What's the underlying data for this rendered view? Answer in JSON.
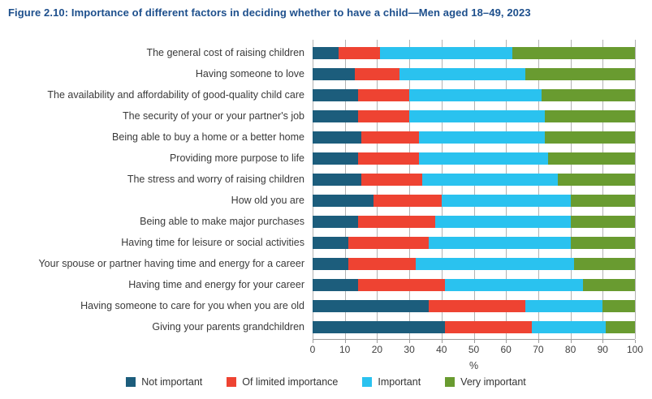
{
  "chart_data": {
    "type": "bar",
    "orientation": "horizontal",
    "stacked": true,
    "title": "Figure 2.10: Importance of different factors in deciding whether to have a child—Men aged 18–49, 2023",
    "xlabel": "%",
    "xlim": [
      0,
      100
    ],
    "x_ticks": [
      0,
      10,
      20,
      30,
      40,
      50,
      60,
      70,
      80,
      90,
      100
    ],
    "grid": "vertical",
    "legend_position": "bottom",
    "categories": [
      "The general cost of raising children",
      "Having someone to love",
      "The availability and affordability of good-quality child care",
      "The security of your or your partner's job",
      "Being able to buy a home or a better home",
      "Providing more purpose to life",
      "The stress and worry of raising children",
      "How old you are",
      "Being able to make major purchases",
      "Having time for leisure or social activities",
      "Your spouse or partner having time and energy for a career",
      "Having time and energy for your career",
      "Having someone to care for you when you are old",
      "Giving your parents grandchildren"
    ],
    "series": [
      {
        "name": "Not important",
        "color": "#1c5d7c",
        "values": [
          8,
          13,
          14,
          14,
          15,
          14,
          15,
          19,
          14,
          11,
          11,
          14,
          36,
          41
        ]
      },
      {
        "name": "Of limited importance",
        "color": "#ee4332",
        "values": [
          13,
          14,
          16,
          16,
          18,
          19,
          19,
          21,
          24,
          25,
          21,
          27,
          30,
          27
        ]
      },
      {
        "name": "Important",
        "color": "#2ac2ef",
        "values": [
          41,
          39,
          41,
          42,
          39,
          40,
          42,
          40,
          42,
          44,
          49,
          43,
          24,
          23
        ]
      },
      {
        "name": "Very important",
        "color": "#699b30",
        "values": [
          38,
          34,
          29,
          28,
          28,
          27,
          24,
          20,
          20,
          20,
          19,
          16,
          10,
          9
        ]
      }
    ]
  },
  "colors": {
    "title_text": "#1d4f8c",
    "grid_line": "#b3b3b3",
    "axis_line": "#9b9b9b",
    "label_text": "#3a3a3a"
  }
}
